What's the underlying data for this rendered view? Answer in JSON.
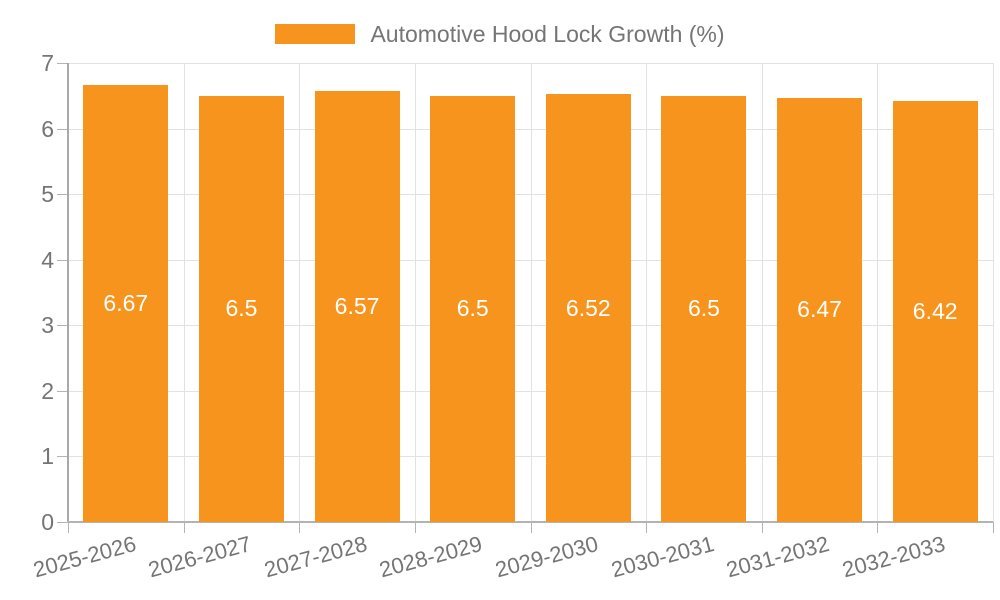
{
  "chart_data": {
    "type": "bar",
    "title": "Automotive Hood Lock Growth (%)",
    "categories": [
      "2025-2026",
      "2026-2027",
      "2027-2028",
      "2028-2029",
      "2029-2030",
      "2030-2031",
      "2031-2032",
      "2032-2033"
    ],
    "values": [
      6.67,
      6.5,
      6.57,
      6.5,
      6.52,
      6.5,
      6.47,
      6.42
    ],
    "value_labels": [
      "6.67",
      "6.5",
      "6.57",
      "6.5",
      "6.52",
      "6.5",
      "6.47",
      "6.42"
    ],
    "xlabel": "",
    "ylabel": "",
    "ylim": [
      0,
      7
    ],
    "yticks": [
      0,
      1,
      2,
      3,
      4,
      5,
      6,
      7
    ],
    "ytick_labels": [
      "0",
      "1",
      "2",
      "3",
      "4",
      "5",
      "6",
      "7"
    ],
    "grid": true,
    "legend_position": "top-center",
    "x_label_rotation_deg": -15
  },
  "legend": {
    "label": "Automotive Hood Lock Growth (%)"
  },
  "colors": {
    "bar": "#F7941E",
    "axis_line": "#a9a9a9",
    "grid_line": "#e2e2e2",
    "tick_line": "#b3b3b3",
    "axis_text": "#757575",
    "value_text": "#ffffff",
    "background": "#ffffff"
  }
}
